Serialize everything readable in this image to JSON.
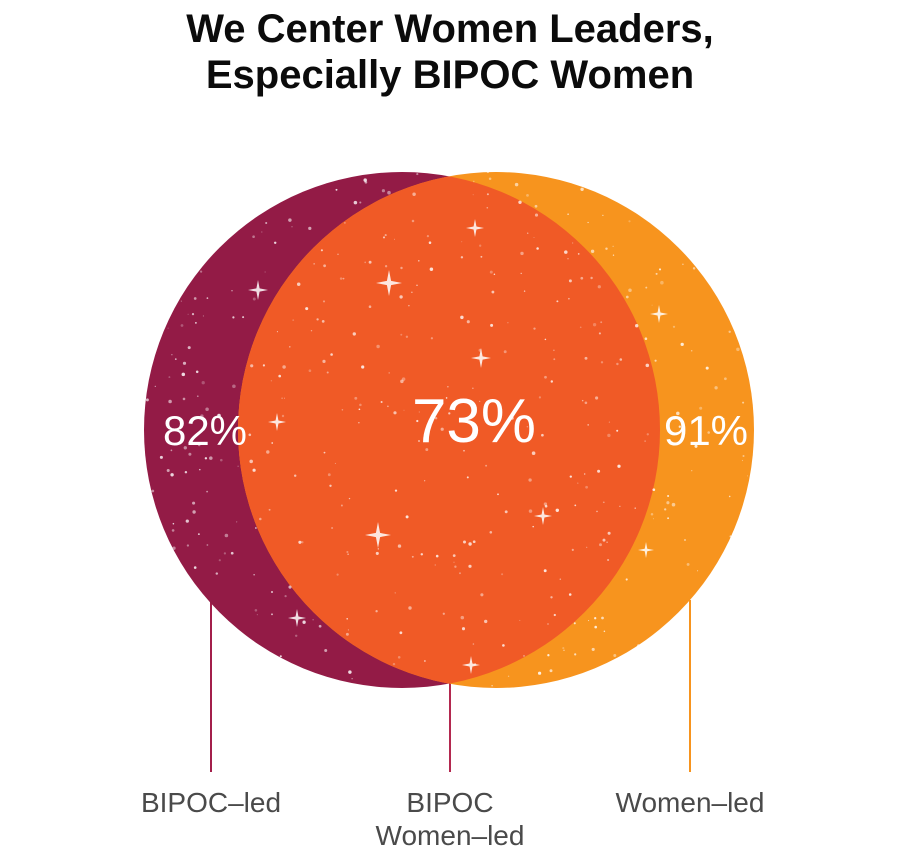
{
  "title": {
    "line1": "We Center Women Leaders,",
    "line2": "Especially BIPOC Women"
  },
  "diagram": {
    "type": "venn",
    "sets": [
      {
        "label": "BIPOC–led",
        "value_label": "82%",
        "color": "#931b46"
      },
      {
        "label": "Women–led",
        "value_label": "91%",
        "color": "#f7941e"
      }
    ],
    "overlap": {
      "label_line1": "BIPOC",
      "label_line2": "Women–led",
      "value_label": "73%",
      "color": "#f05a26"
    },
    "leader_colors": {
      "left": "#a31f4b",
      "center": "#b3284f",
      "right": "#f7941e"
    }
  }
}
